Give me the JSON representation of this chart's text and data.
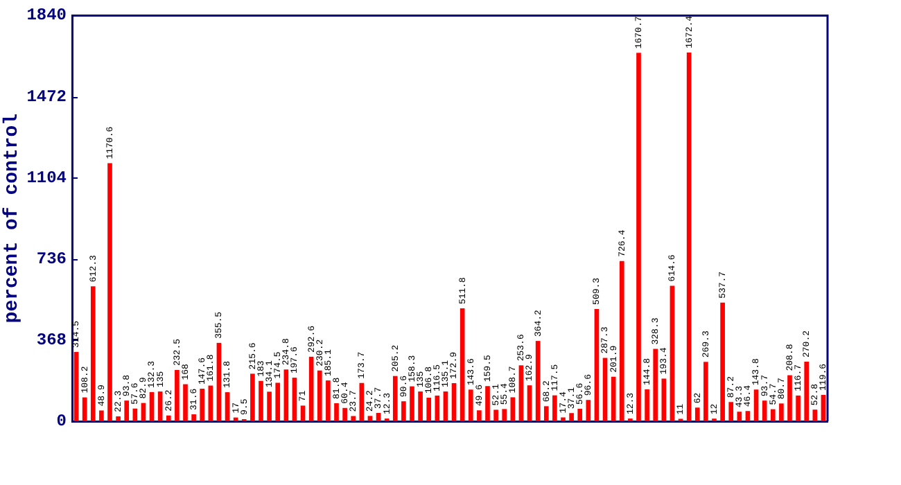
{
  "chart_data": {
    "type": "bar",
    "ylabel": "percent of control",
    "categories": [
      null,
      null,
      null,
      null,
      null,
      null,
      null,
      null,
      null,
      null,
      null,
      null,
      null,
      null,
      null,
      null,
      null,
      null,
      null,
      null,
      null,
      null,
      null,
      null,
      null,
      null,
      null,
      null,
      null,
      null,
      null,
      null,
      null,
      null,
      null,
      null,
      null,
      null,
      null,
      null,
      null,
      null,
      null,
      null,
      null,
      null,
      null,
      null,
      null,
      null,
      null,
      null,
      null,
      null,
      null,
      null,
      null,
      null,
      null,
      null,
      null,
      null,
      null,
      null,
      null,
      null,
      null,
      null,
      null,
      null,
      null,
      null,
      null,
      null,
      null,
      null,
      null,
      null,
      null,
      null,
      null,
      null,
      null,
      null,
      null,
      null,
      null,
      null,
      null,
      null
    ],
    "values": [
      314.5,
      108.2,
      612.3,
      48.9,
      1170.6,
      22.3,
      93.8,
      57.6,
      82.9,
      132.3,
      135,
      26.2,
      232.5,
      168,
      31.6,
      147.6,
      161.8,
      355.5,
      131.8,
      17,
      9.5,
      215.6,
      183,
      134.1,
      174.5,
      234.8,
      197.6,
      71,
      292.6,
      230.2,
      185.1,
      81.8,
      60.4,
      23.7,
      173.7,
      24.2,
      37.7,
      12.3,
      205.2,
      90.6,
      158.3,
      135,
      106.8,
      116.5,
      135.1,
      172.9,
      511.8,
      143.6,
      49.6,
      159.5,
      52.1,
      55.4,
      108.7,
      253.6,
      162.9,
      364.2,
      68.2,
      117.5,
      17.4,
      37.1,
      56.6,
      96.6,
      509.3,
      287.3,
      201.9,
      726.4,
      12.3,
      1670.7,
      144.8,
      328.3,
      193.4,
      614.6,
      11,
      1672.4,
      62,
      269.3,
      12,
      537.7,
      87.2,
      43.3,
      46.4,
      143.8,
      93.7,
      54.7,
      80.7,
      208.8,
      116.7,
      270.2,
      52.8,
      119.6
    ],
    "color": "#ff0000",
    "ylim": [
      0,
      1840
    ],
    "yticks": [
      0,
      368,
      736,
      1104,
      1472,
      1840
    ],
    "tick_labels": "y",
    "data_labels": true
  }
}
